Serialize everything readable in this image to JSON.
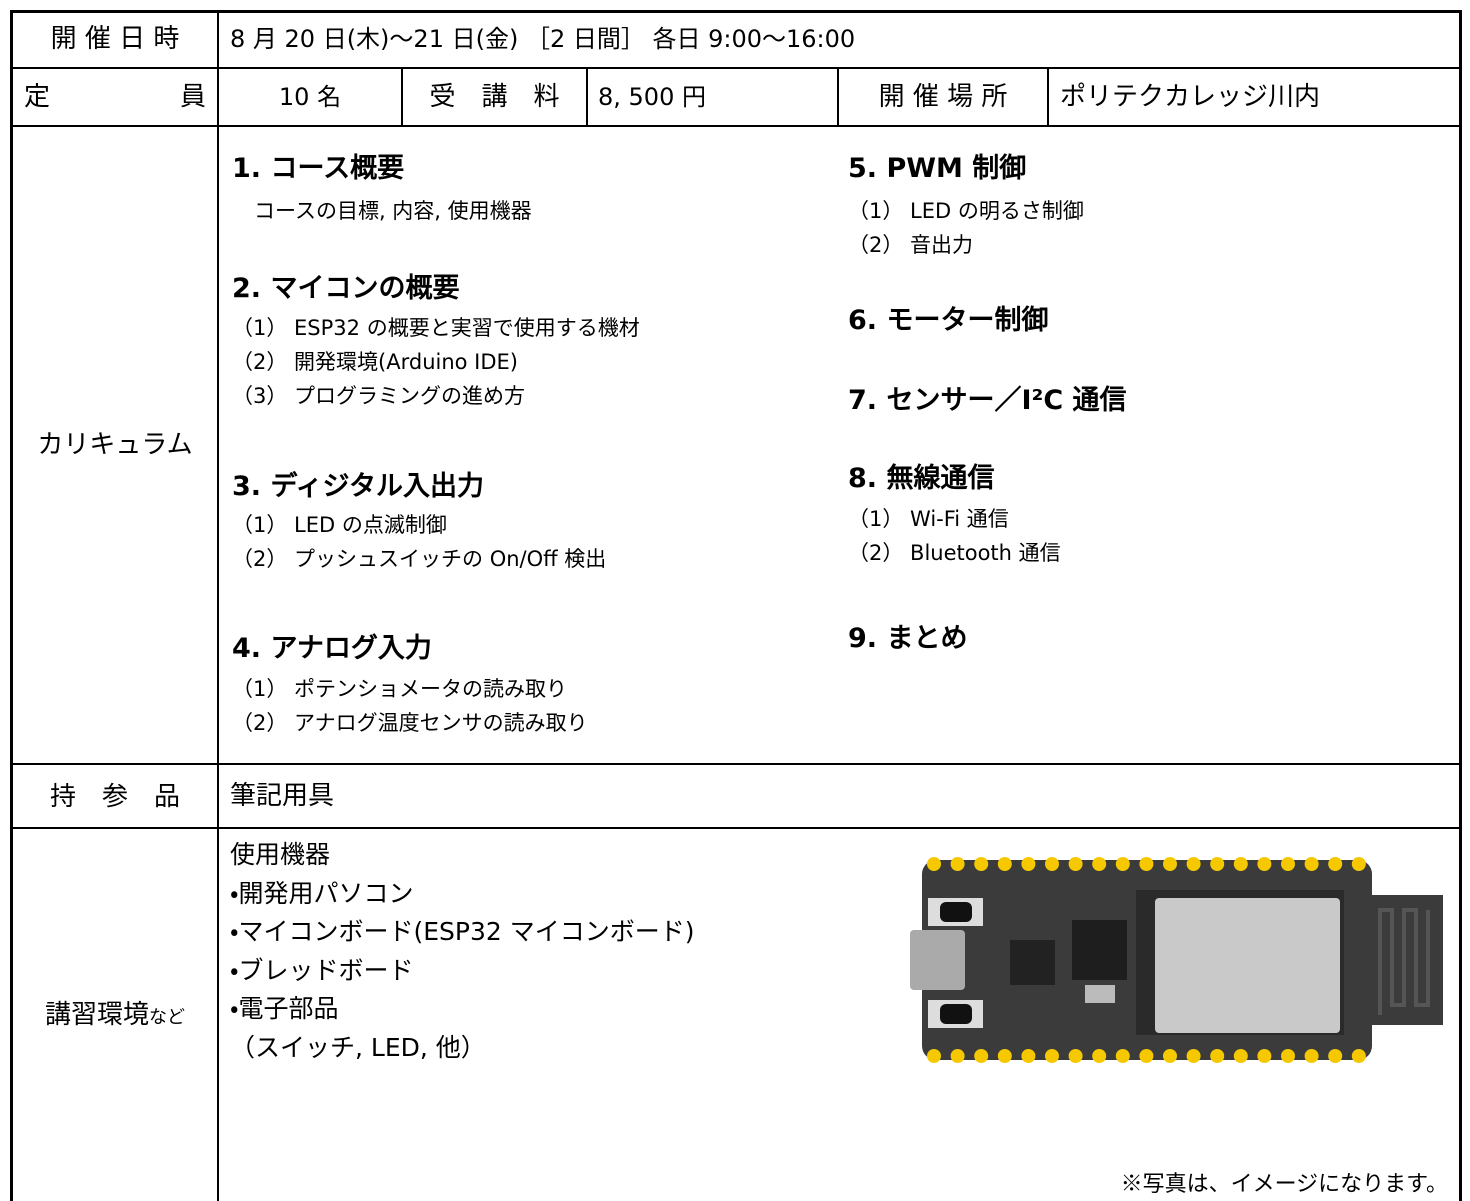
{
  "schedule": {
    "label": "開 催 日 時",
    "value": "8 月 20 日(木)～21 日(金) ［2 日間］ 各日 9:00～16:00"
  },
  "capacity": {
    "label": "定　　　　　員",
    "value": "10 名"
  },
  "fee": {
    "label": "受　講　料",
    "value": "8, 500 円"
  },
  "venue": {
    "label": "開 催 場 所",
    "value": "ポリテクカレッジ川内"
  },
  "curriculum": {
    "label": "カリキュラム",
    "sections": [
      {
        "heading": "1. コース概要",
        "items": [
          "コースの目標, 内容, 使用機器"
        ]
      },
      {
        "heading": "2. マイコンの概要",
        "items": [
          "（1） ESP32 の概要と実習で使用する機材",
          "（2） 開発環境(Arduino IDE)",
          "（3） プログラミングの進め方"
        ]
      },
      {
        "heading": "3. ディジタル入出力",
        "items": [
          "（1） LED の点滅制御",
          "（2） プッシュスイッチの On/Off 検出"
        ]
      },
      {
        "heading": "4. アナログ入力",
        "items": [
          "（1） ポテンショメータの読み取り",
          "（2） アナログ温度センサの読み取り"
        ]
      },
      {
        "heading": "5. PWM 制御",
        "items": [
          "（1） LED の明るさ制御",
          "（2） 音出力"
        ]
      },
      {
        "heading": "6. モーター制御",
        "items": []
      },
      {
        "heading": "7. センサー／I²C 通信",
        "items": []
      },
      {
        "heading": "8. 無線通信",
        "items": [
          "（1） Wi-Fi 通信",
          "（2） Bluetooth 通信"
        ]
      },
      {
        "heading": "9. まとめ",
        "items": []
      }
    ]
  },
  "belongings": {
    "label": "持　参　品",
    "value": "筆記用具"
  },
  "environment": {
    "label": "講習環境",
    "label_suffix": "など",
    "lines": [
      "使用機器",
      "・開発用パソコン",
      "・マイコンボード(ESP32 マイコンボード)",
      "・ブレッドボード",
      "・電子部品",
      "（スイッチ, LED, 他）"
    ],
    "note": "※写真は、イメージになります。"
  }
}
